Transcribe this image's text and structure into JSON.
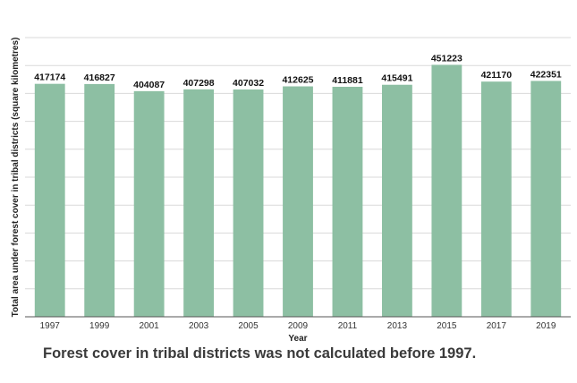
{
  "chart_data": {
    "type": "bar",
    "categories": [
      "1997",
      "1999",
      "2001",
      "2003",
      "2005",
      "2009",
      "2011",
      "2013",
      "2015",
      "2017",
      "2019"
    ],
    "values": [
      417174,
      416827,
      404087,
      407298,
      407032,
      412625,
      411881,
      415491,
      451223,
      421170,
      422351
    ],
    "title": "",
    "xlabel": "Year",
    "ylabel": "Total area under forest cover in tribal districts (square kilometres)",
    "ylim": [
      0,
      500000
    ],
    "grid": true,
    "legend": "none",
    "bar_color": "#8dbfa3",
    "grid_color": "#d9d9d9",
    "data_labels": true
  },
  "caption": "Forest cover in tribal districts was not calculated before 1997."
}
